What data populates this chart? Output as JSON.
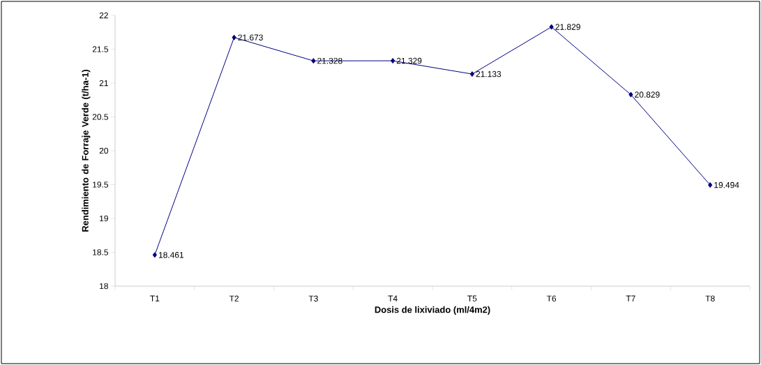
{
  "chart_data": {
    "type": "line",
    "xlabel": "Dosis de lixiviado (ml/4m2)",
    "ylabel": "Rendimiento de Forraje Verde (t/ha-1)",
    "categories": [
      "T1",
      "T2",
      "T3",
      "T4",
      "T5",
      "T6",
      "T7",
      "T8"
    ],
    "values": [
      18.461,
      21.673,
      21.328,
      21.329,
      21.133,
      21.829,
      20.829,
      19.494
    ],
    "color": "#000080",
    "marker": "diamond",
    "line_style": "solid",
    "data_labels": true,
    "ylim": [
      18,
      22
    ],
    "yticks": [
      18,
      18.5,
      19,
      19.5,
      20,
      20.5,
      21,
      21.5,
      22
    ],
    "grid": false
  }
}
